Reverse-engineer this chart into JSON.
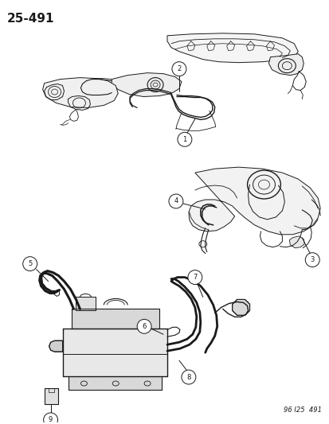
{
  "title": "25–491",
  "footer": "96 I25  491",
  "bg_color": "#ffffff",
  "title_fontsize": 11,
  "line_color": "#1a1a1a",
  "fig_width": 4.14,
  "fig_height": 5.33,
  "dpi": 100
}
